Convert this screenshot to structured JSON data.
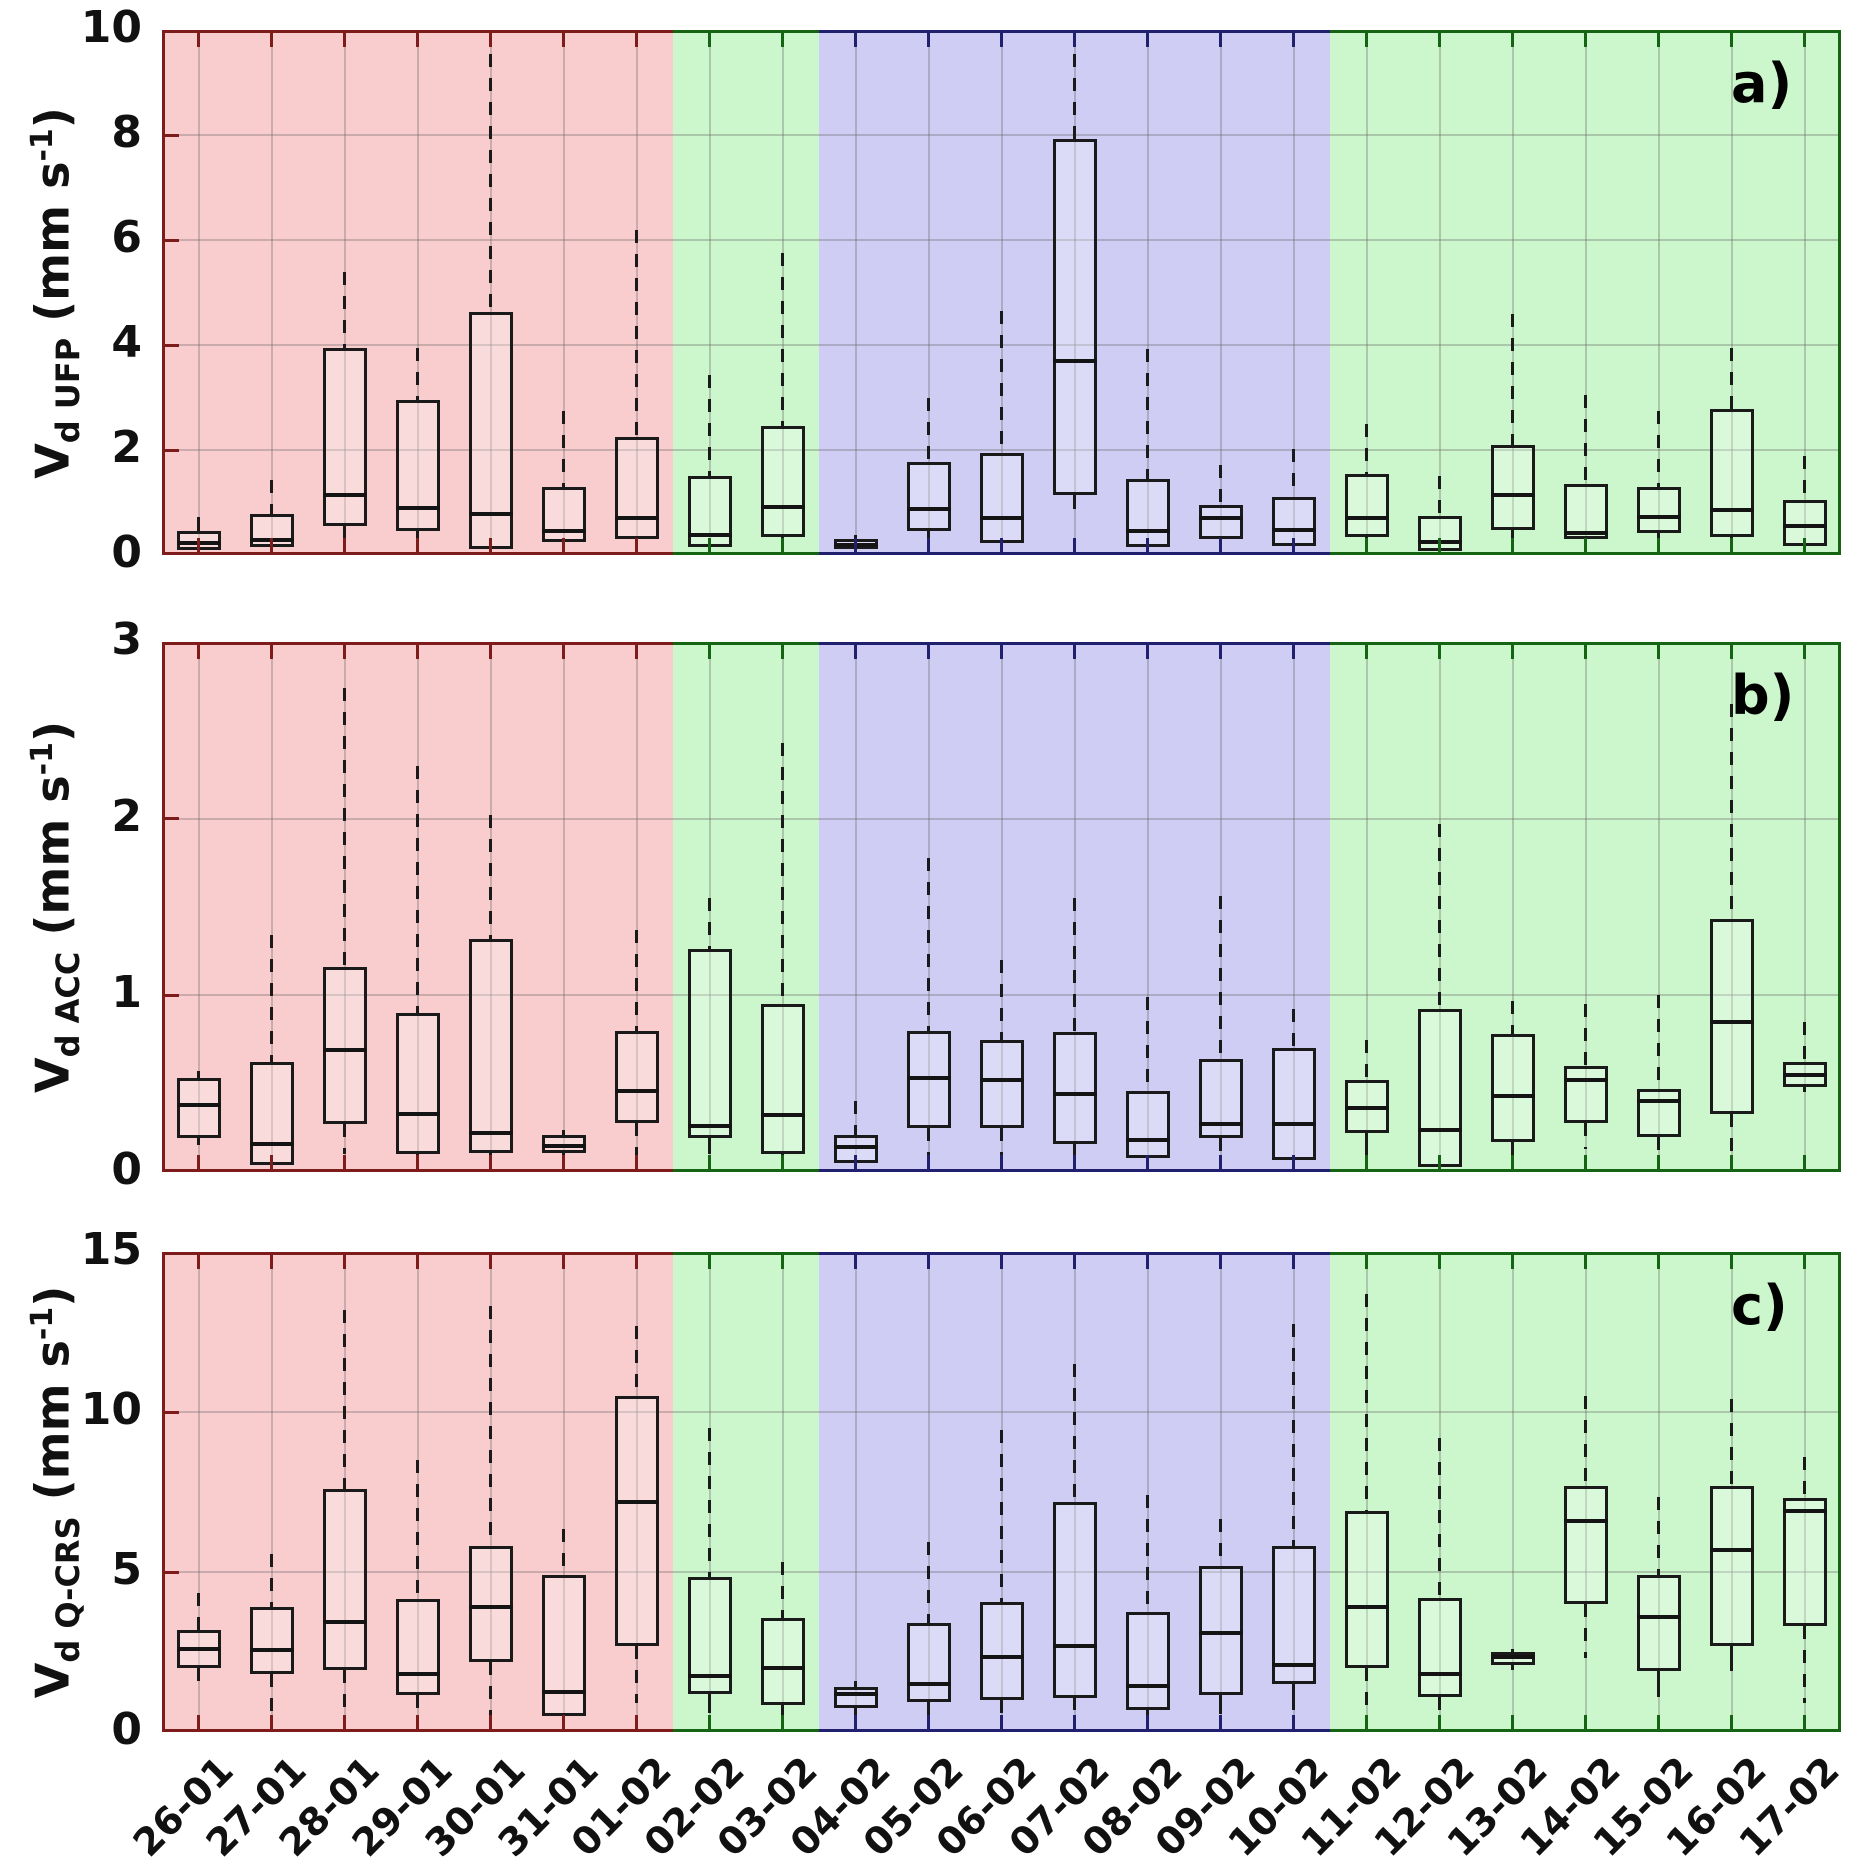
{
  "figure": {
    "panel_letters": [
      "a)",
      "b)",
      "c)"
    ]
  },
  "x_categories": [
    "26-01",
    "27-01",
    "28-01",
    "29-01",
    "30-01",
    "31-01",
    "01-02",
    "02-02",
    "03-02",
    "04-02",
    "05-02",
    "06-02",
    "07-02",
    "08-02",
    "09-02",
    "10-02",
    "11-02",
    "12-02",
    "13-02",
    "14-02",
    "15-02",
    "16-02",
    "17-02"
  ],
  "regions": [
    {
      "start": 0,
      "end": 7,
      "fill": "#f9cdcd",
      "edge": "#7e1c1c"
    },
    {
      "start": 7,
      "end": 9,
      "fill": "#ccf6cc",
      "edge": "#146414"
    },
    {
      "start": 9,
      "end": 16,
      "fill": "#cfcdf4",
      "edge": "#20206f"
    },
    {
      "start": 16,
      "end": 23,
      "fill": "#ccf6cc",
      "edge": "#146414"
    }
  ],
  "grid_color": "rgba(100,100,100,0.32)",
  "chart_data": [
    {
      "type": "box",
      "panel_label": "a)",
      "ylabel": {
        "prefix": "V",
        "sub": "d UFP",
        "mid": " (mm s",
        "sup": "-1",
        "suffix": ")"
      },
      "ylim": [
        0,
        10
      ],
      "yticks": [
        0,
        2,
        4,
        6,
        8,
        10
      ],
      "boxes": [
        {
          "date": "26-01",
          "whislo": 0.05,
          "q1": 0.1,
          "med": 0.22,
          "q3": 0.45,
          "whishi": 0.72
        },
        {
          "date": "27-01",
          "whislo": 0.03,
          "q1": 0.15,
          "med": 0.28,
          "q3": 0.78,
          "whishi": 1.42
        },
        {
          "date": "28-01",
          "whislo": 0.1,
          "q1": 0.55,
          "med": 1.15,
          "q3": 3.95,
          "whishi": 5.4
        },
        {
          "date": "29-01",
          "whislo": 0.1,
          "q1": 0.45,
          "med": 0.9,
          "q3": 2.95,
          "whishi": 3.95
        },
        {
          "date": "30-01",
          "whislo": 0.05,
          "q1": 0.12,
          "med": 0.78,
          "q3": 4.62,
          "whishi": 10.0
        },
        {
          "date": "31-01",
          "whislo": 0.05,
          "q1": 0.25,
          "med": 0.45,
          "q3": 1.3,
          "whishi": 2.75
        },
        {
          "date": "01-02",
          "whislo": 0.05,
          "q1": 0.3,
          "med": 0.7,
          "q3": 2.25,
          "whishi": 6.2
        },
        {
          "date": "02-02",
          "whislo": 0.03,
          "q1": 0.15,
          "med": 0.38,
          "q3": 1.5,
          "whishi": 3.42
        },
        {
          "date": "03-02",
          "whislo": 0.02,
          "q1": 0.34,
          "med": 0.92,
          "q3": 2.45,
          "whishi": 5.75
        },
        {
          "date": "04-02",
          "whislo": 0.03,
          "q1": 0.12,
          "med": 0.2,
          "q3": 0.3,
          "whishi": 0.38
        },
        {
          "date": "05-02",
          "whislo": 0.1,
          "q1": 0.45,
          "med": 0.88,
          "q3": 1.78,
          "whishi": 3.0
        },
        {
          "date": "06-02",
          "whislo": 0.02,
          "q1": 0.22,
          "med": 0.7,
          "q3": 1.95,
          "whishi": 4.65
        },
        {
          "date": "07-02",
          "whislo": 0.88,
          "q1": 1.15,
          "med": 3.7,
          "q3": 7.93,
          "whishi": 10.0
        },
        {
          "date": "08-02",
          "whislo": 0.05,
          "q1": 0.15,
          "med": 0.45,
          "q3": 1.45,
          "whishi": 3.92
        },
        {
          "date": "09-02",
          "whislo": 0.05,
          "q1": 0.3,
          "med": 0.7,
          "q3": 0.95,
          "whishi": 1.72
        },
        {
          "date": "10-02",
          "whislo": 0.02,
          "q1": 0.17,
          "med": 0.48,
          "q3": 1.1,
          "whishi": 2.02
        },
        {
          "date": "11-02",
          "whislo": 0.02,
          "q1": 0.35,
          "med": 0.7,
          "q3": 1.55,
          "whishi": 2.5
        },
        {
          "date": "12-02",
          "whislo": 0.02,
          "q1": 0.07,
          "med": 0.25,
          "q3": 0.75,
          "whishi": 1.5
        },
        {
          "date": "13-02",
          "whislo": 0.03,
          "q1": 0.48,
          "med": 1.15,
          "q3": 2.1,
          "whishi": 4.6
        },
        {
          "date": "14-02",
          "whislo": 0.1,
          "q1": 0.3,
          "med": 0.42,
          "q3": 1.35,
          "whishi": 3.05
        },
        {
          "date": "15-02",
          "whislo": 0.03,
          "q1": 0.42,
          "med": 0.72,
          "q3": 1.3,
          "whishi": 2.75
        },
        {
          "date": "16-02",
          "whislo": 0.05,
          "q1": 0.35,
          "med": 0.85,
          "q3": 2.78,
          "whishi": 3.95
        },
        {
          "date": "17-02",
          "whislo": 0.03,
          "q1": 0.18,
          "med": 0.55,
          "q3": 1.05,
          "whishi": 1.88
        }
      ]
    },
    {
      "type": "box",
      "panel_label": "b)",
      "ylabel": {
        "prefix": "V",
        "sub": "d ACC",
        "mid": " (mm s",
        "sup": "-1",
        "suffix": ")"
      },
      "ylim": [
        0,
        3
      ],
      "yticks": [
        0,
        1,
        2,
        3
      ],
      "boxes": [
        {
          "date": "26-01",
          "whislo": 0.15,
          "q1": 0.19,
          "med": 0.38,
          "q3": 0.53,
          "whishi": 0.57
        },
        {
          "date": "27-01",
          "whislo": 0.01,
          "q1": 0.04,
          "med": 0.16,
          "q3": 0.62,
          "whishi": 1.34
        },
        {
          "date": "28-01",
          "whislo": 0.1,
          "q1": 0.27,
          "med": 0.69,
          "q3": 1.16,
          "whishi": 2.74
        },
        {
          "date": "29-01",
          "whislo": 0.06,
          "q1": 0.1,
          "med": 0.33,
          "q3": 0.9,
          "whishi": 2.3
        },
        {
          "date": "30-01",
          "whislo": 0.06,
          "q1": 0.11,
          "med": 0.22,
          "q3": 1.32,
          "whishi": 2.02
        },
        {
          "date": "31-01",
          "whislo": 0.06,
          "q1": 0.11,
          "med": 0.15,
          "q3": 0.21,
          "whishi": 0.24
        },
        {
          "date": "01-02",
          "whislo": 0.05,
          "q1": 0.28,
          "med": 0.46,
          "q3": 0.8,
          "whishi": 1.37
        },
        {
          "date": "02-02",
          "whislo": 0.1,
          "q1": 0.19,
          "med": 0.26,
          "q3": 1.26,
          "whishi": 1.55
        },
        {
          "date": "03-02",
          "whislo": 0.01,
          "q1": 0.1,
          "med": 0.32,
          "q3": 0.95,
          "whishi": 2.43
        },
        {
          "date": "04-02",
          "whislo": 0.01,
          "q1": 0.05,
          "med": 0.14,
          "q3": 0.21,
          "whishi": 0.4
        },
        {
          "date": "05-02",
          "whislo": 0.02,
          "q1": 0.25,
          "med": 0.53,
          "q3": 0.8,
          "whishi": 1.78
        },
        {
          "date": "06-02",
          "whislo": 0.01,
          "q1": 0.25,
          "med": 0.52,
          "q3": 0.75,
          "whishi": 1.2
        },
        {
          "date": "07-02",
          "whislo": 0.02,
          "q1": 0.16,
          "med": 0.44,
          "q3": 0.79,
          "whishi": 1.55
        },
        {
          "date": "08-02",
          "whislo": 0.01,
          "q1": 0.08,
          "med": 0.18,
          "q3": 0.46,
          "whishi": 0.99
        },
        {
          "date": "09-02",
          "whislo": 0.03,
          "q1": 0.19,
          "med": 0.27,
          "q3": 0.64,
          "whishi": 1.56
        },
        {
          "date": "10-02",
          "whislo": 0.01,
          "q1": 0.07,
          "med": 0.27,
          "q3": 0.7,
          "whishi": 0.92
        },
        {
          "date": "11-02",
          "whislo": 0.08,
          "q1": 0.22,
          "med": 0.36,
          "q3": 0.52,
          "whishi": 0.75
        },
        {
          "date": "12-02",
          "whislo": 0.01,
          "q1": 0.03,
          "med": 0.24,
          "q3": 0.92,
          "whishi": 1.97
        },
        {
          "date": "13-02",
          "whislo": 0.02,
          "q1": 0.17,
          "med": 0.43,
          "q3": 0.78,
          "whishi": 0.97
        },
        {
          "date": "14-02",
          "whislo": 0.13,
          "q1": 0.28,
          "med": 0.52,
          "q3": 0.6,
          "whishi": 0.95
        },
        {
          "date": "15-02",
          "whislo": 0.05,
          "q1": 0.2,
          "med": 0.4,
          "q3": 0.47,
          "whishi": 1.0
        },
        {
          "date": "16-02",
          "whislo": 0.05,
          "q1": 0.33,
          "med": 0.85,
          "q3": 1.43,
          "whishi": 2.65
        },
        {
          "date": "17-02",
          "whislo": 0.45,
          "q1": 0.48,
          "med": 0.55,
          "q3": 0.62,
          "whishi": 0.85
        }
      ]
    },
    {
      "type": "box",
      "panel_label": "c)",
      "ylabel": {
        "prefix": "V",
        "sub": "d Q-CRS",
        "mid": " (mm s",
        "sup": "-1",
        "suffix": ")"
      },
      "ylim": [
        0,
        15
      ],
      "yticks": [
        0,
        5,
        10,
        15
      ],
      "boxes": [
        {
          "date": "26-01",
          "whislo": 1.6,
          "q1": 2.0,
          "med": 2.6,
          "q3": 3.2,
          "whishi": 4.35
        },
        {
          "date": "27-01",
          "whislo": 0.4,
          "q1": 1.8,
          "med": 2.55,
          "q3": 3.9,
          "whishi": 5.55
        },
        {
          "date": "28-01",
          "whislo": 0.5,
          "q1": 1.95,
          "med": 3.45,
          "q3": 7.6,
          "whishi": 13.2
        },
        {
          "date": "29-01",
          "whislo": 0.75,
          "q1": 1.15,
          "med": 1.8,
          "q3": 4.15,
          "whishi": 8.5
        },
        {
          "date": "30-01",
          "whislo": 0.5,
          "q1": 2.2,
          "med": 3.9,
          "q3": 5.8,
          "whishi": 13.3
        },
        {
          "date": "31-01",
          "whislo": 0.35,
          "q1": 0.5,
          "med": 1.25,
          "q3": 4.9,
          "whishi": 6.35
        },
        {
          "date": "01-02",
          "whislo": 0.9,
          "q1": 2.7,
          "med": 7.2,
          "q3": 10.5,
          "whishi": 12.7
        },
        {
          "date": "02-02",
          "whislo": 0.6,
          "q1": 1.2,
          "med": 1.75,
          "q3": 4.85,
          "whishi": 9.5
        },
        {
          "date": "03-02",
          "whislo": 0.2,
          "q1": 0.85,
          "med": 2.0,
          "q3": 3.55,
          "whishi": 5.3
        },
        {
          "date": "04-02",
          "whislo": 0.1,
          "q1": 0.75,
          "med": 1.2,
          "q3": 1.4,
          "whishi": 1.6
        },
        {
          "date": "05-02",
          "whislo": 0.15,
          "q1": 0.95,
          "med": 1.5,
          "q3": 3.4,
          "whishi": 5.95
        },
        {
          "date": "06-02",
          "whislo": 0.05,
          "q1": 1.0,
          "med": 2.35,
          "q3": 4.05,
          "whishi": 9.45
        },
        {
          "date": "07-02",
          "whislo": 0.7,
          "q1": 1.05,
          "med": 2.7,
          "q3": 7.2,
          "whishi": 11.5
        },
        {
          "date": "08-02",
          "whislo": 0.2,
          "q1": 0.7,
          "med": 1.45,
          "q3": 3.75,
          "whishi": 7.4
        },
        {
          "date": "09-02",
          "whislo": 0.55,
          "q1": 1.15,
          "med": 3.1,
          "q3": 5.2,
          "whishi": 6.65
        },
        {
          "date": "10-02",
          "whislo": 0.7,
          "q1": 1.5,
          "med": 2.1,
          "q3": 5.8,
          "whishi": 12.75
        },
        {
          "date": "11-02",
          "whislo": 0.6,
          "q1": 2.0,
          "med": 3.9,
          "q3": 6.9,
          "whishi": 13.7
        },
        {
          "date": "12-02",
          "whislo": 0.2,
          "q1": 1.1,
          "med": 1.8,
          "q3": 4.2,
          "whishi": 9.2
        },
        {
          "date": "13-02",
          "whislo": 1.95,
          "q1": 2.1,
          "med": 2.35,
          "q3": 2.5,
          "whishi": 2.6
        },
        {
          "date": "14-02",
          "whislo": 2.3,
          "q1": 4.0,
          "med": 6.6,
          "q3": 7.7,
          "whishi": 10.5
        },
        {
          "date": "15-02",
          "whislo": 1.1,
          "q1": 1.9,
          "med": 3.6,
          "q3": 4.9,
          "whishi": 7.35
        },
        {
          "date": "16-02",
          "whislo": 1.9,
          "q1": 2.7,
          "med": 5.7,
          "q3": 7.7,
          "whishi": 10.4
        },
        {
          "date": "17-02",
          "whislo": 0.9,
          "q1": 3.3,
          "med": 6.9,
          "q3": 7.3,
          "whishi": 8.6
        }
      ]
    }
  ]
}
